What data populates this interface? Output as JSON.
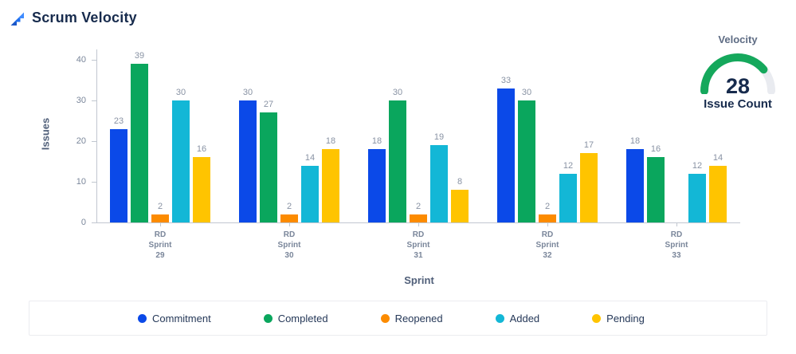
{
  "header": {
    "title": "Scrum Velocity"
  },
  "gauge": {
    "title": "Velocity",
    "value": "28",
    "subtitle": "Issue Count",
    "fraction": 0.78,
    "color": "#15A85C",
    "track_color": "#E9EBF0"
  },
  "chart_data": {
    "type": "bar",
    "title": "Scrum Velocity",
    "xlabel": "Sprint",
    "ylabel": "Issues",
    "ylim": [
      0,
      40
    ],
    "yticks": [
      0,
      10,
      20,
      30,
      40
    ],
    "grid": false,
    "legend_position": "bottom",
    "categories": [
      "RD Sprint 29",
      "RD Sprint 30",
      "RD Sprint 31",
      "RD Sprint 32",
      "RD Sprint 33"
    ],
    "series": [
      {
        "name": "Commitment",
        "color": "#0B49E8",
        "values": [
          23,
          30,
          18,
          33,
          18
        ]
      },
      {
        "name": "Completed",
        "color": "#0AA65D",
        "values": [
          39,
          27,
          30,
          30,
          16
        ]
      },
      {
        "name": "Reopened",
        "color": "#FC8B00",
        "values": [
          2,
          2,
          2,
          2,
          0
        ]
      },
      {
        "name": "Added",
        "color": "#13B7D6",
        "values": [
          30,
          14,
          19,
          12,
          12
        ]
      },
      {
        "name": "Pending",
        "color": "#FFC400",
        "values": [
          16,
          18,
          8,
          17,
          14
        ]
      }
    ]
  }
}
